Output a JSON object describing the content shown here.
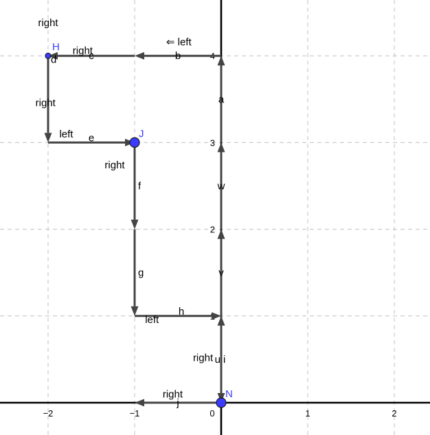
{
  "axes": {
    "x_ticks": [
      {
        "value": -2,
        "label": "−2"
      },
      {
        "value": -1,
        "label": "−1"
      },
      {
        "value": 0,
        "label": "0"
      },
      {
        "value": 1,
        "label": "1"
      },
      {
        "value": 2,
        "label": "2"
      }
    ],
    "y_ticks": [
      {
        "value": 1,
        "label": "1"
      },
      {
        "value": 2,
        "label": "2"
      },
      {
        "value": 3,
        "label": "3"
      },
      {
        "value": 4,
        "label": "4"
      }
    ]
  },
  "points": [
    {
      "name": "H",
      "x": -2,
      "y": 4,
      "size": "small"
    },
    {
      "name": "J",
      "x": -1,
      "y": 3,
      "size": "large"
    },
    {
      "name": "N",
      "x": 0,
      "y": 0,
      "size": "large"
    }
  ],
  "vectors": [
    {
      "label": "j",
      "from": [
        0,
        0
      ],
      "to": [
        -1,
        0
      ]
    },
    {
      "label": "u",
      "from": [
        0,
        1
      ],
      "to": [
        0,
        0
      ]
    },
    {
      "label": "i",
      "from": [
        0,
        0
      ],
      "to": [
        0,
        1
      ]
    },
    {
      "label": "v",
      "from": [
        0,
        1
      ],
      "to": [
        0,
        2
      ]
    },
    {
      "label": "w",
      "from": [
        0,
        2
      ],
      "to": [
        0,
        3
      ]
    },
    {
      "label": "a",
      "from": [
        0,
        3
      ],
      "to": [
        0,
        4
      ]
    },
    {
      "label": "b",
      "from": [
        0,
        4
      ],
      "to": [
        -1,
        4
      ]
    },
    {
      "label": "c",
      "from": [
        -1,
        4
      ],
      "to": [
        -2,
        4
      ]
    },
    {
      "label": "d",
      "from": [
        -2,
        4
      ],
      "to": [
        -2,
        3
      ]
    },
    {
      "label": "e",
      "from": [
        -2,
        3
      ],
      "to": [
        -1,
        3
      ]
    },
    {
      "label": "f",
      "from": [
        -1,
        3
      ],
      "to": [
        -1,
        2
      ]
    },
    {
      "label": "g",
      "from": [
        -1,
        2
      ],
      "to": [
        -1,
        1
      ]
    },
    {
      "label": "h",
      "from": [
        -1,
        1
      ],
      "to": [
        0,
        1
      ]
    }
  ],
  "direction_labels": [
    {
      "text": "right",
      "x": -2.0,
      "y": 4.38
    },
    {
      "text": "right",
      "x": -1.6,
      "y": 4.06
    },
    {
      "text": "⇐ left",
      "x": -0.49,
      "y": 4.16
    },
    {
      "text": "right",
      "x": -2.03,
      "y": 3.46
    },
    {
      "text": "left",
      "x": -1.79,
      "y": 3.1
    },
    {
      "text": "right",
      "x": -1.23,
      "y": 2.74
    },
    {
      "text": "left",
      "x": -0.8,
      "y": 0.96
    },
    {
      "text": "right",
      "x": -0.21,
      "y": 0.52
    },
    {
      "text": "right",
      "x": -0.56,
      "y": 0.1
    }
  ]
}
